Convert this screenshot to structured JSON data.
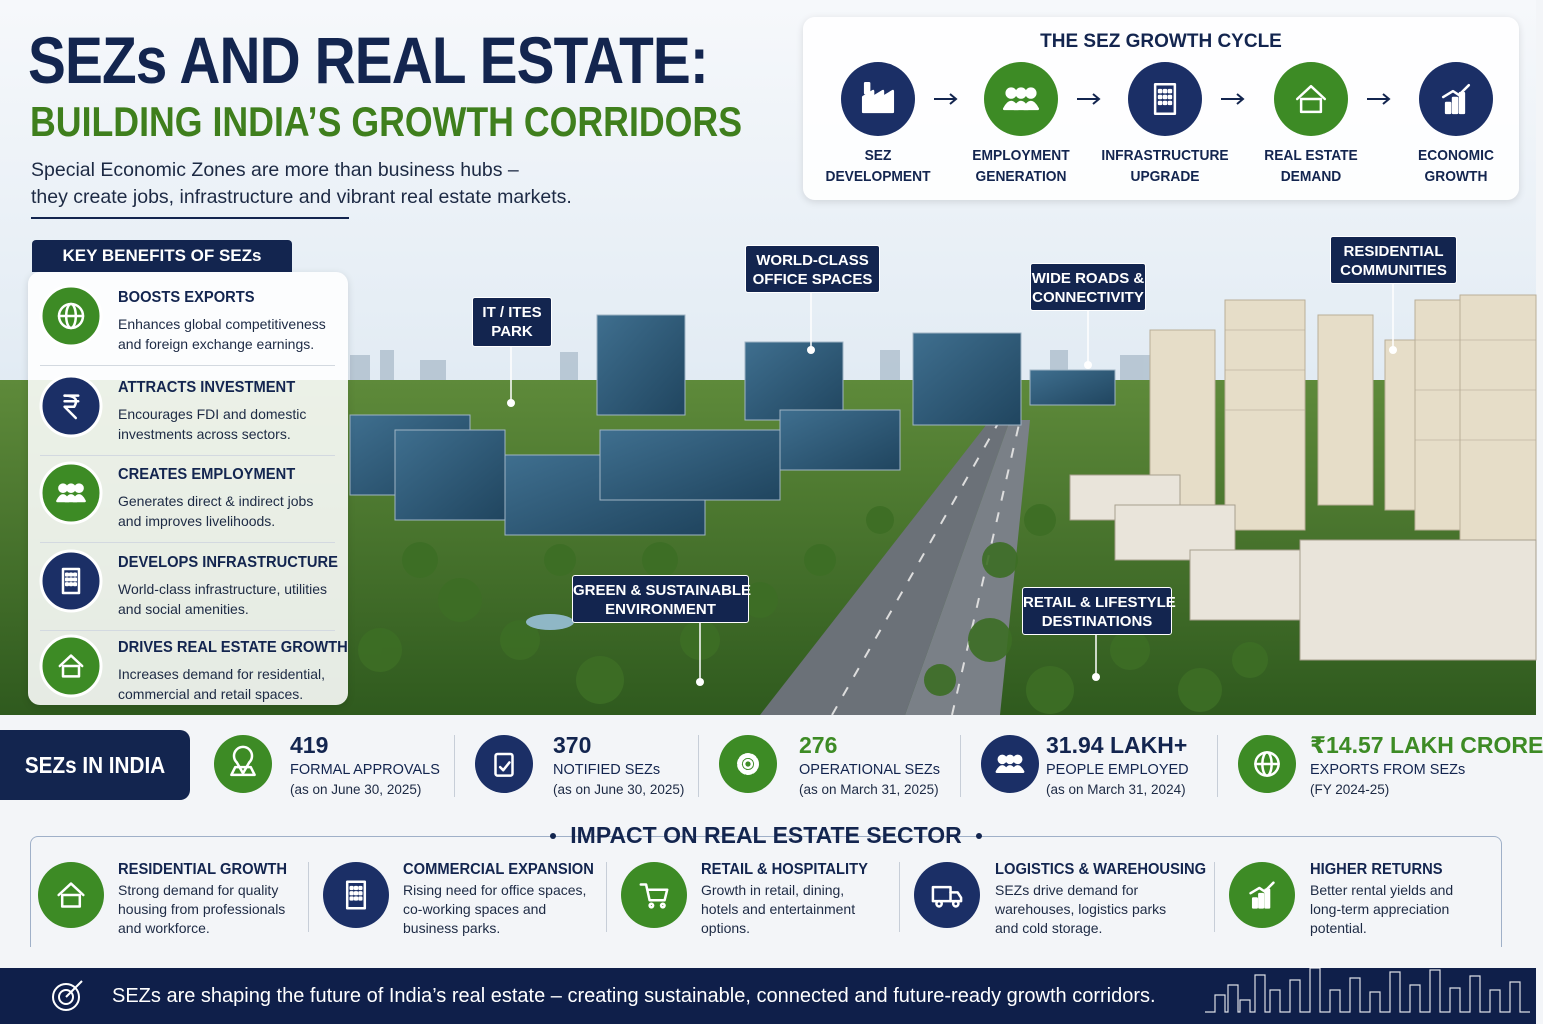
{
  "header": {
    "title": "SEZs AND REAL ESTATE:",
    "subtitle": "BUILDING INDIA’S GROWTH CORRIDORS",
    "intro": [
      "Special Economic Zones are more than business hubs –",
      "they create jobs, infrastructure and vibrant real estate markets."
    ]
  },
  "growth_cycle": {
    "title": "THE SEZ GROWTH CYCLE",
    "steps": [
      [
        "SEZ",
        "DEVELOPMENT"
      ],
      [
        "EMPLOYMENT",
        "GENERATION"
      ],
      [
        "INFRASTRUCTURE",
        "UPGRADE"
      ],
      [
        "REAL ESTATE",
        "DEMAND"
      ],
      [
        "ECONOMIC",
        "GROWTH"
      ]
    ]
  },
  "benefits": {
    "title": "KEY BENEFITS OF SEZs",
    "items": [
      {
        "title": "BOOSTS EXPORTS",
        "text": [
          "Enhances global competitiveness",
          "and foreign exchange earnings."
        ]
      },
      {
        "title": "ATTRACTS INVESTMENT",
        "text": [
          "Encourages FDI and domestic",
          "investments across sectors."
        ]
      },
      {
        "title": "CREATES EMPLOYMENT",
        "text": [
          "Generates direct & indirect jobs",
          "and improves livelihoods."
        ]
      },
      {
        "title": "DEVELOPS INFRASTRUCTURE",
        "text": [
          "World-class infrastructure, utilities",
          "and social amenities."
        ]
      },
      {
        "title": "DRIVES REAL ESTATE GROWTH",
        "text": [
          "Increases demand for residential,",
          "commercial and retail spaces."
        ]
      }
    ]
  },
  "callouts": [
    [
      "IT / ITES",
      "PARK"
    ],
    [
      "WORLD-CLASS",
      "OFFICE SPACES"
    ],
    [
      "WIDE ROADS &",
      "CONNECTIVITY"
    ],
    [
      "RESIDENTIAL",
      "COMMUNITIES"
    ],
    [
      "GREEN & SUSTAINABLE",
      "ENVIRONMENT"
    ],
    [
      "RETAIL & LIFESTYLE",
      "DESTINATIONS"
    ]
  ],
  "stats": {
    "title": "SEZs IN INDIA",
    "items": [
      {
        "value": "419",
        "label": "FORMAL APPROVALS",
        "note": "(as on June 30, 2025)"
      },
      {
        "value": "370",
        "label": "NOTIFIED SEZs",
        "note": "(as on June 30, 2025)"
      },
      {
        "value": "276",
        "label": "OPERATIONAL SEZs",
        "note": "(as on March 31, 2025)"
      },
      {
        "value": "31.94 LAKH+",
        "label": "PEOPLE EMPLOYED",
        "note": "(as on March 31, 2024)"
      },
      {
        "value": "₹14.57 LAKH CRORE",
        "label": "EXPORTS FROM SEZs",
        "note": "(FY 2024-25)"
      }
    ]
  },
  "impact": {
    "title": "IMPACT ON REAL ESTATE SECTOR",
    "items": [
      {
        "title": "RESIDENTIAL GROWTH",
        "text": [
          "Strong demand for quality",
          "housing from professionals",
          "and workforce."
        ]
      },
      {
        "title": "COMMERCIAL EXPANSION",
        "text": [
          "Rising need for office spaces,",
          "co-working spaces and",
          "business parks."
        ]
      },
      {
        "title": "RETAIL & HOSPITALITY",
        "text": [
          "Growth in retail, dining,",
          "hotels and entertainment",
          "options."
        ]
      },
      {
        "title": "LOGISTICS & WAREHOUSING",
        "text": [
          "SEZs drive demand for",
          "warehouses, logistics parks",
          "and cold storage."
        ]
      },
      {
        "title": "HIGHER RETURNS",
        "text": [
          "Better rental yields and",
          "long-term appreciation",
          "potential."
        ]
      }
    ]
  },
  "footer": {
    "text": "SEZs are shaping the future of India’s real estate – creating sustainable, connected and future-ready growth corridors."
  }
}
